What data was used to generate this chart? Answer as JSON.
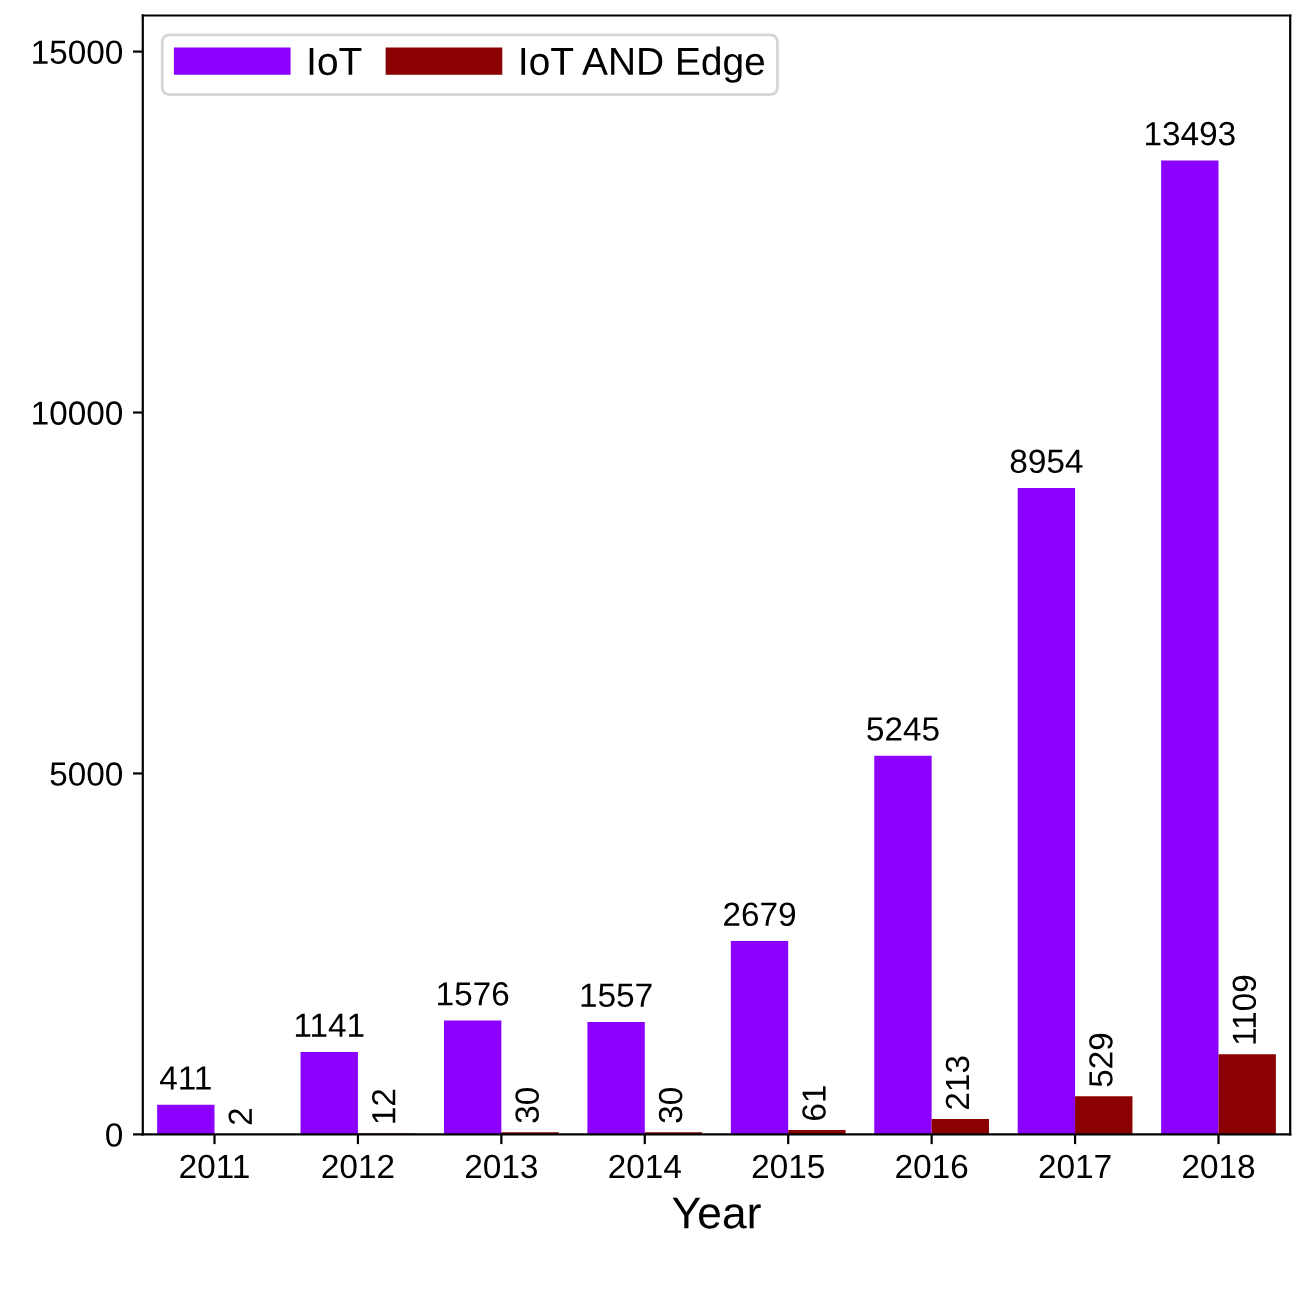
{
  "chart_data": {
    "type": "bar",
    "xlabel": "Year",
    "categories": [
      "2011",
      "2012",
      "2013",
      "2014",
      "2015",
      "2016",
      "2017",
      "2018"
    ],
    "series": [
      {
        "name": "IoT",
        "color": "#8b00ff",
        "values": [
          411,
          1141,
          1576,
          1557,
          2679,
          5245,
          8954,
          13493
        ]
      },
      {
        "name": "IoT AND Edge",
        "color": "#8b0000",
        "values": [
          2,
          12,
          30,
          30,
          61,
          213,
          529,
          1109
        ]
      }
    ],
    "ylim": [
      0,
      15500
    ],
    "yticks": [
      0,
      5000,
      10000,
      15000
    ],
    "data_labels": true,
    "legend": "top left",
    "grid": false
  }
}
